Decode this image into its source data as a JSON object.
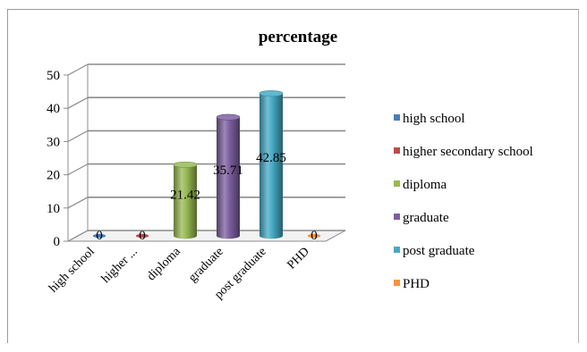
{
  "chart_data": {
    "type": "bar",
    "title": "percentage",
    "xlabel": "",
    "ylabel": "",
    "ylim": [
      0,
      50
    ],
    "yticks": [
      "0",
      "10",
      "20",
      "30",
      "40",
      "50"
    ],
    "grid": true,
    "three_d": true,
    "bar_shape": "cylinder",
    "legend_position": "right",
    "categories": [
      "high school",
      "higher ...",
      "diploma",
      "graduate",
      "post graduate",
      "PHD"
    ],
    "values": [
      0,
      0,
      21.42,
      35.71,
      42.85,
      0
    ],
    "data_labels": [
      "0",
      "0",
      "21.42",
      "35.71",
      "42.85",
      "0"
    ],
    "legend": [
      {
        "label": "high school",
        "color": "#4a7ebb"
      },
      {
        "label": "higher secondary school",
        "color": "#be4b48"
      },
      {
        "label": "diploma",
        "color": "#98b954"
      },
      {
        "label": " graduate",
        "color": "#7d60a0"
      },
      {
        "label": "post graduate",
        "color": "#46aac5"
      },
      {
        "label": "PHD",
        "color": "#f69240"
      }
    ]
  }
}
